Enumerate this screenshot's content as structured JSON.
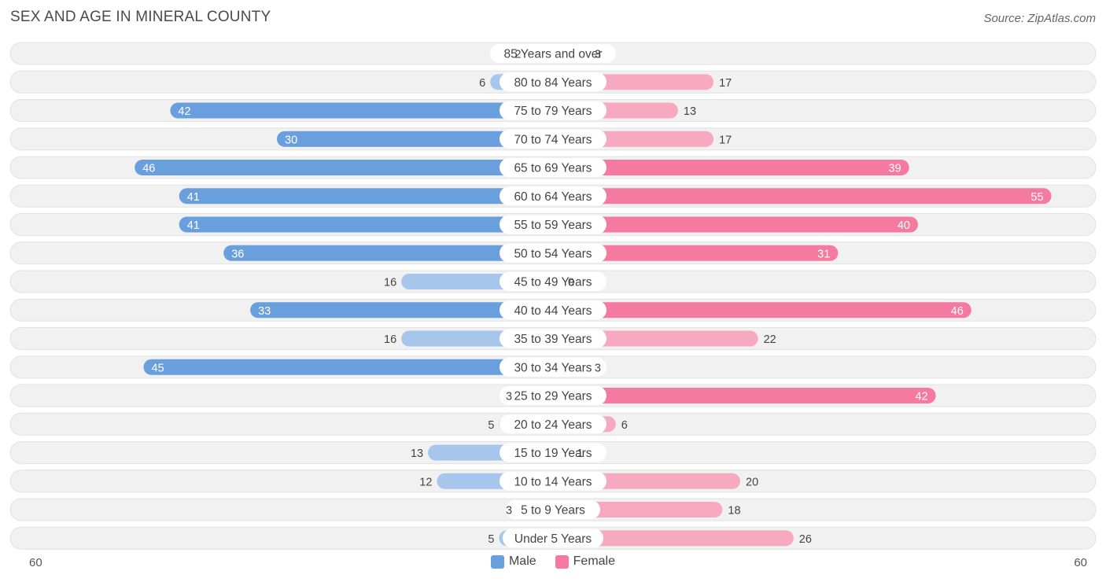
{
  "header": {
    "title": "SEX AND AGE IN MINERAL COUNTY",
    "source": "Source: ZipAtlas.com"
  },
  "colors": {
    "male_dark": "#6a9fdd",
    "male_light": "#a6c6ec",
    "female_dark": "#f47aa0",
    "female_light": "#f8a9c2",
    "row_bg": "#f1f1f1"
  },
  "chart_data": {
    "type": "bar",
    "orientation": "horizontal-diverging",
    "categories": [
      "85 Years and over",
      "80 to 84 Years",
      "75 to 79 Years",
      "70 to 74 Years",
      "65 to 69 Years",
      "60 to 64 Years",
      "55 to 59 Years",
      "50 to 54 Years",
      "45 to 49 Years",
      "40 to 44 Years",
      "35 to 39 Years",
      "30 to 34 Years",
      "25 to 29 Years",
      "20 to 24 Years",
      "15 to 19 Years",
      "10 to 14 Years",
      "5 to 9 Years",
      "Under 5 Years"
    ],
    "series": [
      {
        "name": "Male",
        "values": [
          2,
          6,
          42,
          30,
          46,
          41,
          41,
          36,
          16,
          33,
          16,
          45,
          3,
          5,
          13,
          12,
          3,
          5
        ]
      },
      {
        "name": "Female",
        "values": [
          3,
          17,
          13,
          17,
          39,
          55,
          40,
          31,
          0,
          46,
          22,
          3,
          42,
          6,
          1,
          20,
          18,
          26
        ]
      }
    ],
    "axis_max": 60,
    "axis_min_label": "60",
    "axis_max_label": "60",
    "legend_position": "bottom-center"
  }
}
